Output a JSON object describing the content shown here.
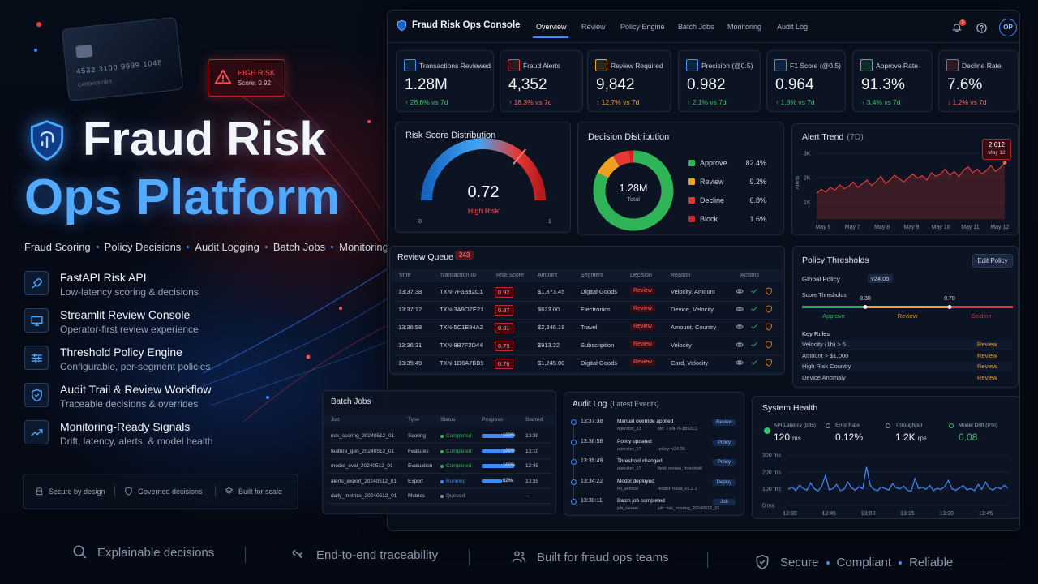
{
  "hero": {
    "card_number": "4532 3100 9999 1048",
    "card_holder": "CARDHOLDER",
    "risk_badge": {
      "title": "HIGH RISK",
      "score": "Score: 0.92"
    },
    "title_line1": "Fraud Risk",
    "title_line2": "Ops Platform",
    "tagline": [
      "Fraud Scoring",
      "Policy Decisions",
      "Audit Logging",
      "Batch Jobs",
      "Monitoring"
    ],
    "features": [
      {
        "title": "FastAPI Risk API",
        "desc": "Low-latency scoring & decisions"
      },
      {
        "title": "Streamlit Review Console",
        "desc": "Operator-first review experience"
      },
      {
        "title": "Threshold Policy Engine",
        "desc": "Configurable, per-segment policies"
      },
      {
        "title": "Audit Trail & Review Workflow",
        "desc": "Traceable decisions & overrides"
      },
      {
        "title": "Monitoring-Ready Signals",
        "desc": "Drift, latency, alerts, & model health"
      }
    ],
    "badges": [
      "Secure by design",
      "Governed decisions",
      "Built for scale"
    ]
  },
  "footer": {
    "items": [
      "Explainable decisions",
      "End-to-end traceability",
      "Built for fraud ops teams"
    ],
    "values": [
      "Secure",
      "Compliant",
      "Reliable"
    ]
  },
  "console": {
    "title": "Fraud Risk Ops Console",
    "nav": [
      "Overview",
      "Review",
      "Policy Engine",
      "Batch Jobs",
      "Monitoring",
      "Audit Log"
    ],
    "active_tab": "Overview",
    "notifications": "3",
    "avatar": "OP",
    "kpis": [
      {
        "label": "Transactions Reviewed",
        "value": "1.28M",
        "delta": "↑ 28.6% vs 7d",
        "color": "#3d8bfd",
        "delta_color": "#35c46a"
      },
      {
        "label": "Fraud Alerts",
        "value": "4,352",
        "delta": "↑ 18.3% vs 7d",
        "color": "#e5484d",
        "delta_color": "#ff6161"
      },
      {
        "label": "Review Required",
        "value": "9,842",
        "delta": "↑ 12.7% vs 7d",
        "color": "#f5a524",
        "delta_color": "#f5a524"
      },
      {
        "label": "Precision (@0.5)",
        "value": "0.982",
        "delta": "↑ 2.1% vs 7d",
        "color": "#3d8bfd",
        "delta_color": "#35c46a"
      },
      {
        "label": "F1 Score (@0.5)",
        "value": "0.964",
        "delta": "↑ 1.8% vs 7d",
        "color": "#3d8bfd",
        "delta_color": "#35c46a"
      },
      {
        "label": "Approve Rate",
        "value": "91.3%",
        "delta": "↑ 3.4% vs 7d",
        "color": "#35c46a",
        "delta_color": "#35c46a"
      },
      {
        "label": "Decline Rate",
        "value": "7.6%",
        "delta": "↓ 1.2% vs 7d",
        "color": "#e5484d",
        "delta_color": "#ff6161"
      }
    ],
    "risk_score": {
      "title": "Risk Score Distribution",
      "value": 0.72,
      "min": 0,
      "max": 1,
      "label": "High Risk"
    },
    "decisions": {
      "type": "pie",
      "title": "Decision Distribution",
      "total": "1.28M",
      "total_label": "Total",
      "categories": [
        "Approve",
        "Review",
        "Decline",
        "Block"
      ],
      "values": [
        82.4,
        9.2,
        6.8,
        1.6
      ],
      "value_labels": [
        "82.4%",
        "9.2%",
        "6.8%",
        "1.6%"
      ],
      "colors": [
        "#2fb457",
        "#f0a020",
        "#e53935",
        "#c62828"
      ]
    },
    "alert_trend": {
      "type": "line",
      "title": "Alert Trend",
      "period": "(7D)",
      "y_label": "Alerts",
      "ylim": [
        300,
        3300
      ],
      "yticks": [
        {
          "value": 1000,
          "label": "1K"
        },
        {
          "value": 2000,
          "label": "2K"
        },
        {
          "value": 3000,
          "label": "3K"
        }
      ],
      "xticks": [
        "May 6",
        "May 7",
        "May 8",
        "May 9",
        "May 10",
        "May 11",
        "May 12"
      ],
      "values": [
        1350,
        1520,
        1410,
        1600,
        1480,
        1700,
        1550,
        1650,
        1820,
        1600,
        1750,
        1900,
        1680,
        1850,
        2050,
        1760,
        1900,
        2100,
        1950,
        1820,
        2000,
        2150,
        1980,
        2080,
        1900,
        2200,
        2050,
        2150,
        2350,
        2100,
        2250,
        2050,
        2300,
        2450,
        2200,
        2350,
        2150,
        2300,
        2500,
        2250,
        2400,
        2612
      ],
      "color": "#e53935",
      "tooltip": {
        "value": 2612,
        "label": "2,612",
        "date": "May 12"
      }
    },
    "review_queue": {
      "title": "Review Queue",
      "count": "243",
      "columns": [
        "Time",
        "Transaction ID",
        "Risk Score",
        "Amount",
        "Segment",
        "Decision",
        "Reason",
        "Actions"
      ],
      "rows": [
        [
          "13:37:38",
          "TXN-7F3B92C1",
          0.92,
          "$1,873.45",
          "Digital Goods",
          "Review",
          "Velocity, Amount"
        ],
        [
          "13:37:12",
          "TXN-3A9O7E21",
          0.87,
          "$623.00",
          "Electronics",
          "Review",
          "Device, Velocity"
        ],
        [
          "13:36:58",
          "TXN-5C1E94A2",
          0.81,
          "$2,346.19",
          "Travel",
          "Review",
          "Amount, Country"
        ],
        [
          "13:36:31",
          "TXN-8B7F2D44",
          0.79,
          "$913.22",
          "Subscription",
          "Review",
          "Velocity"
        ],
        [
          "13:35:49",
          "TXN-1D6A7BB9",
          0.76,
          "$1,245.00",
          "Digital Goods",
          "Review",
          "Card, Velocity"
        ]
      ]
    },
    "policy": {
      "title": "Policy Thresholds",
      "edit": "Edit Policy",
      "global_label": "Global Policy",
      "version": "v24.05",
      "scale_label": "Score Thresholds",
      "xlim": [
        0,
        1
      ],
      "thresholds": [
        {
          "value": 0.3,
          "label": "0.30"
        },
        {
          "value": 0.7,
          "label": "0.70"
        }
      ],
      "segments": [
        "Approve",
        "Review",
        "Decline"
      ],
      "segment_colors": [
        "#2fb457",
        "#f0a020",
        "#e53935"
      ],
      "rules_title": "Key Rules",
      "rules": [
        {
          "rule": "Velocity (1h) > 5",
          "action": "Review"
        },
        {
          "rule": "Amount > $1,000",
          "action": "Review"
        },
        {
          "rule": "High Risk Country",
          "action": "Review"
        },
        {
          "rule": "Device Anomaly",
          "action": "Review"
        }
      ]
    },
    "batch_jobs": {
      "title": "Batch Jobs",
      "columns": [
        "Job",
        "Type",
        "Status",
        "Progress",
        "Started"
      ],
      "progress_lim": [
        0,
        100
      ],
      "jobs": [
        {
          "job": "risk_scoring_20240512_01",
          "type": "Scoring",
          "status": "Completed",
          "progress": 100,
          "progress_label": "100%",
          "started": "13:30",
          "color": "#2fb457"
        },
        {
          "job": "feature_gen_20240512_01",
          "type": "Features",
          "status": "Completed",
          "progress": 100,
          "progress_label": "100%",
          "started": "13:10",
          "color": "#2fb457"
        },
        {
          "job": "model_eval_20240512_01",
          "type": "Evaluation",
          "status": "Completed",
          "progress": 100,
          "progress_label": "100%",
          "started": "12:45",
          "color": "#2fb457"
        },
        {
          "job": "alerts_export_20240512_01",
          "type": "Export",
          "status": "Running",
          "progress": 62,
          "progress_label": "62%",
          "started": "13:35",
          "color": "#3d8bfd"
        },
        {
          "job": "daily_metrics_20240512_01",
          "type": "Metrics",
          "status": "Queued",
          "started": "—",
          "color": "#8a94a6"
        }
      ]
    },
    "audit_log": {
      "title": "Audit Log",
      "subtitle": "(Latest Events)",
      "events": [
        {
          "time": "13:37:38",
          "title": "Manual override applied",
          "actor": "operator_23",
          "detail": "txn: TXN-7F3B92C1",
          "tag": "Review"
        },
        {
          "time": "13:36:58",
          "title": "Policy updated",
          "actor": "operator_17",
          "detail": "policy: v24.05",
          "tag": "Policy"
        },
        {
          "time": "13:35:49",
          "title": "Threshold changed",
          "actor": "operator_17",
          "detail": "field: review_threshold",
          "tag": "Policy"
        },
        {
          "time": "13:34:22",
          "title": "Model deployed",
          "actor": "ml_service",
          "detail": "model: fraud_v3.2.1",
          "tag": "Deploy"
        },
        {
          "time": "13:30:11",
          "title": "Batch job completed",
          "actor": "job_runner",
          "detail": "job: risk_scoring_20240512_01",
          "tag": "Job"
        }
      ]
    },
    "system_health": {
      "type": "line",
      "title": "System Health",
      "metrics": [
        {
          "label": "API Latency (p95)",
          "value": "120",
          "unit": "ms",
          "color": "#35c46a"
        },
        {
          "label": "Error Rate",
          "value": "0.12%",
          "color": "#8a94a6"
        },
        {
          "label": "Throughput",
          "value": "1.2K",
          "unit": "rps",
          "color": "#8a94a6"
        },
        {
          "label": "Model Drift (PSI)",
          "value": "0.08",
          "color": "#35c46a"
        }
      ],
      "ylim": [
        0,
        330
      ],
      "yticks": [
        {
          "value": 0,
          "label": "0 ms"
        },
        {
          "value": 100,
          "label": "100 ms"
        },
        {
          "value": 200,
          "label": "200 ms"
        },
        {
          "value": 300,
          "label": "300 ms"
        }
      ],
      "xticks": [
        "12:30",
        "12:45",
        "13:00",
        "13:15",
        "13:30",
        "13:45"
      ],
      "values": [
        95,
        110,
        88,
        120,
        102,
        90,
        135,
        98,
        85,
        115,
        180,
        92,
        100,
        125,
        88,
        96,
        140,
        105,
        90,
        112,
        98,
        230,
        120,
        95,
        88,
        110,
        100,
        92,
        130,
        105,
        98,
        115,
        90,
        85,
        160,
        100,
        108,
        95,
        120,
        88,
        102,
        94,
        112,
        150,
        98,
        90,
        105,
        118,
        92,
        100,
        88,
        125,
        96,
        140,
        102,
        90,
        110,
        98,
        120,
        104
      ],
      "color": "#3d8bfd"
    }
  }
}
